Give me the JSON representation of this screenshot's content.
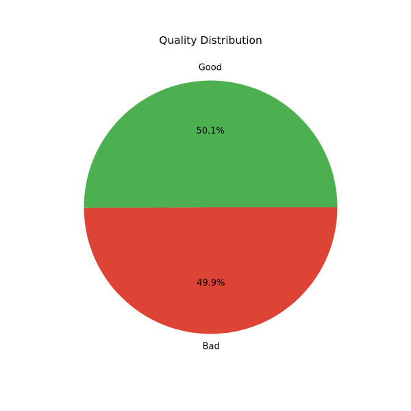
{
  "chart_data": {
    "type": "pie",
    "title": "Quality Distribution",
    "slices": [
      {
        "label": "Good",
        "percent": 50.1,
        "percent_label": "50.1%",
        "color": "#4caf50"
      },
      {
        "label": "Bad",
        "percent": 49.9,
        "percent_label": "49.9%",
        "color": "#dd4436"
      }
    ]
  }
}
